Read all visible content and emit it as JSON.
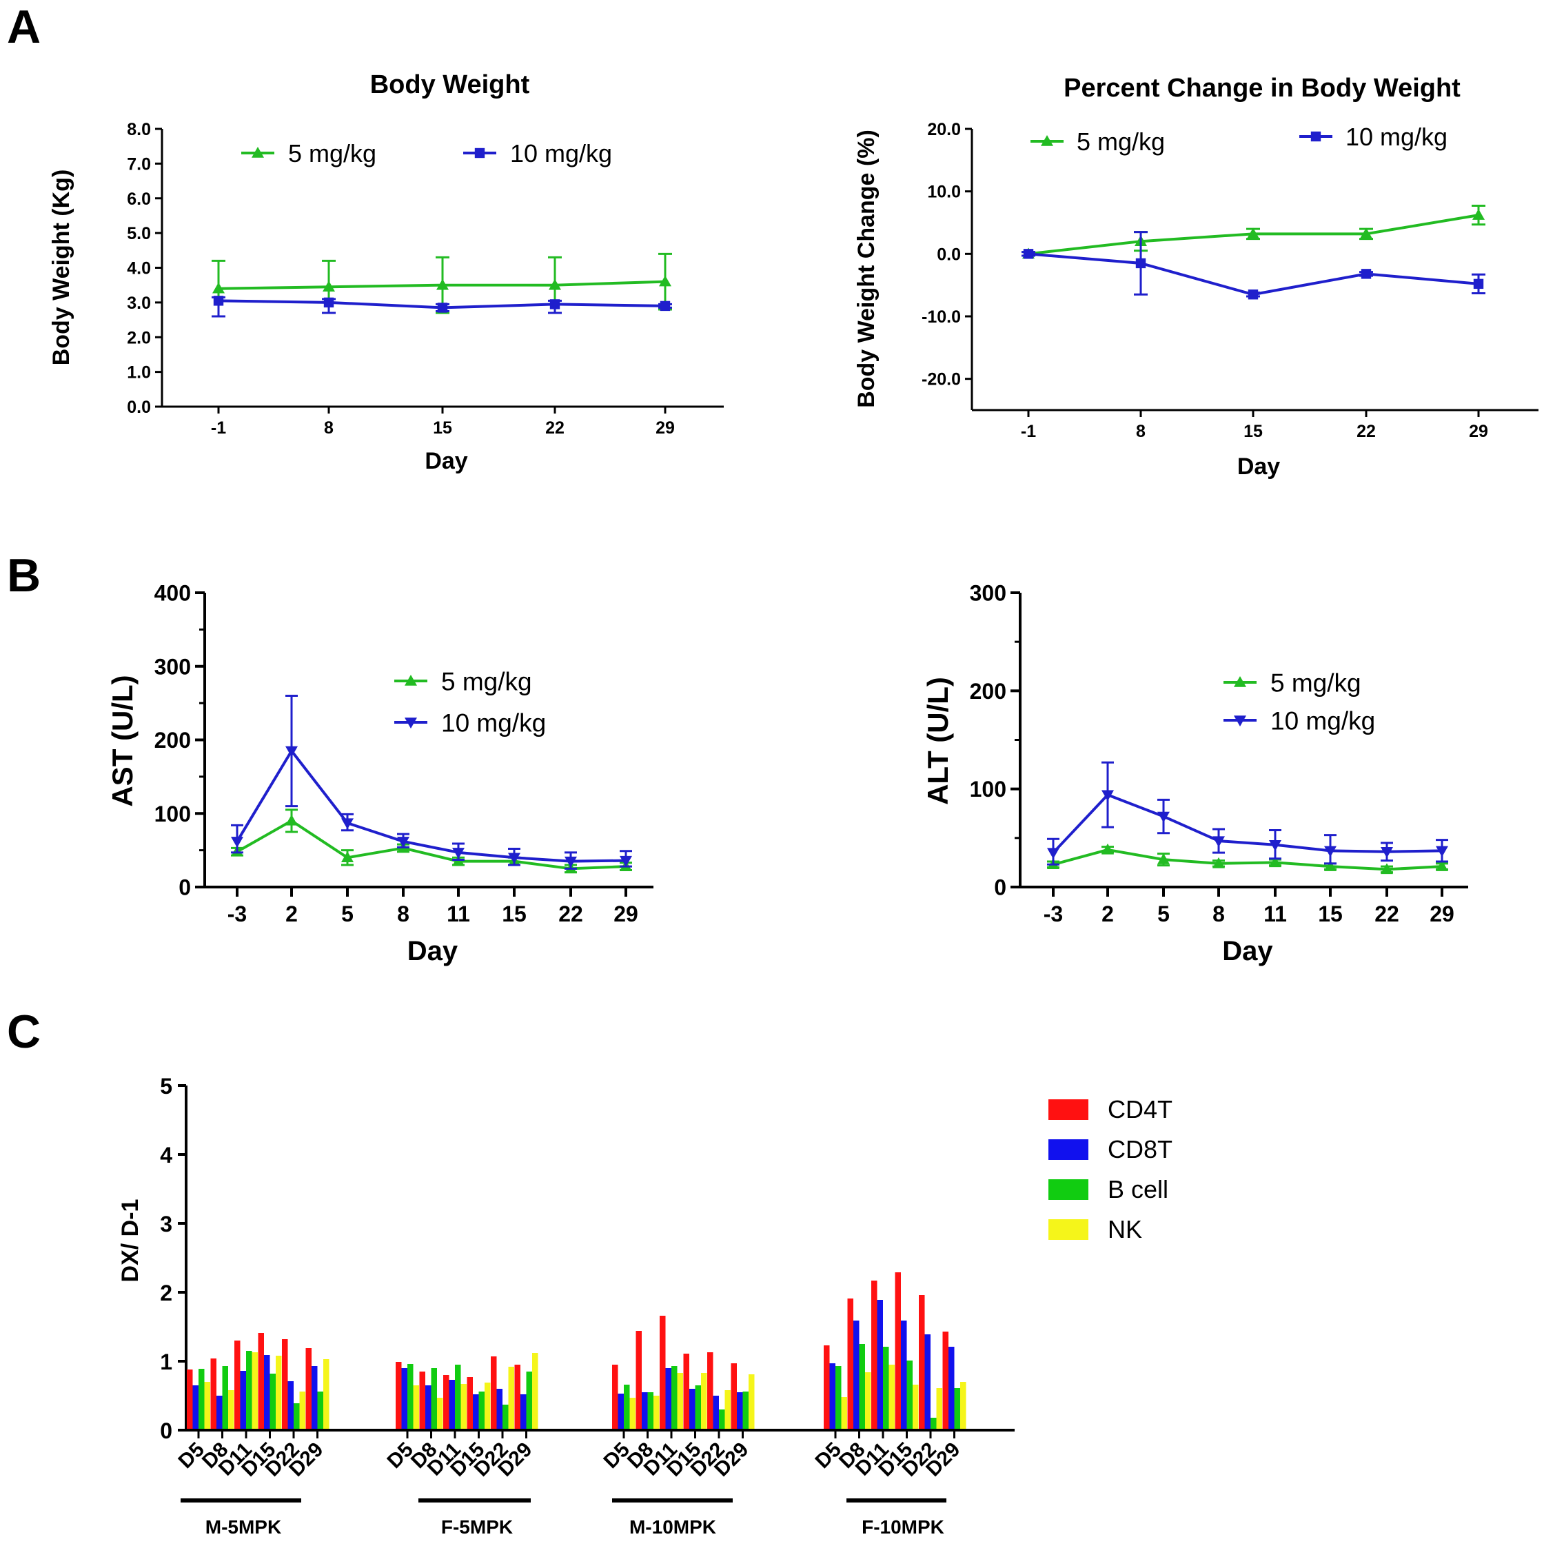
{
  "panels": {
    "a": "A",
    "b": "B",
    "c": "C"
  },
  "colors": {
    "green": "#22bb22",
    "blue": "#1f1fcc",
    "cd4t": "#ff1111",
    "cd8t": "#1111ee",
    "bcell": "#11cc11",
    "nk": "#f5f51a",
    "axis": "#000000"
  },
  "chart_data": [
    {
      "id": "body-weight",
      "type": "line",
      "title": "Body Weight",
      "xlabel": "Day",
      "ylabel": "Body Weight (Kg)",
      "x": [
        -1,
        8,
        15,
        22,
        29
      ],
      "x_tick_labels": [
        "-1",
        "8",
        "15",
        "22",
        "29"
      ],
      "y_ticks": [
        "0.0",
        "1.0",
        "2.0",
        "3.0",
        "4.0",
        "5.0",
        "6.0",
        "7.0",
        "8.0"
      ],
      "ylim": [
        0,
        8
      ],
      "legend": "top",
      "series": [
        {
          "name": "5 mg/kg",
          "color": "green",
          "marker": "triangle-up",
          "values": [
            3.4,
            3.45,
            3.5,
            3.5,
            3.6
          ],
          "err_up": [
            0.8,
            0.75,
            0.8,
            0.8,
            0.8
          ],
          "err_down": [
            0.8,
            0.75,
            0.8,
            0.8,
            0.8
          ]
        },
        {
          "name": "10 mg/kg",
          "color": "blue",
          "marker": "square",
          "values": [
            3.05,
            3.0,
            2.85,
            2.95,
            2.9
          ],
          "err_up": [
            0.1,
            0.1,
            0.1,
            0.1,
            0.05
          ],
          "err_down": [
            0.45,
            0.3,
            0.1,
            0.25,
            0.05
          ]
        }
      ]
    },
    {
      "id": "percent-change",
      "type": "line",
      "title": "Percent Change in Body Weight",
      "xlabel": "Day",
      "ylabel": "Body Weight Change  (%)",
      "x": [
        -1,
        8,
        15,
        22,
        29
      ],
      "x_tick_labels": [
        "-1",
        "8",
        "15",
        "22",
        "29"
      ],
      "y_ticks": [
        "-20.0",
        "-10.0",
        "0.0",
        "10.0",
        "20.0"
      ],
      "ylim": [
        -25,
        20
      ],
      "legend": "top",
      "series": [
        {
          "name": "5 mg/kg",
          "color": "green",
          "marker": "triangle-up",
          "values": [
            0,
            2.0,
            3.2,
            3.2,
            6.2
          ],
          "err_up": [
            0.3,
            1.5,
            0.8,
            0.8,
            1.5
          ],
          "err_down": [
            0.3,
            1.5,
            0.8,
            0.8,
            1.5
          ]
        },
        {
          "name": "10 mg/kg",
          "color": "blue",
          "marker": "square",
          "values": [
            0,
            -1.5,
            -6.5,
            -3.2,
            -4.8
          ],
          "err_up": [
            0.3,
            5.0,
            0.3,
            0.3,
            1.5
          ],
          "err_down": [
            0.3,
            5.0,
            0.3,
            0.3,
            1.5
          ]
        }
      ]
    },
    {
      "id": "ast",
      "type": "line",
      "title": "",
      "xlabel": "Day",
      "ylabel": "AST (U/L)",
      "x": [
        -3,
        2,
        5,
        8,
        11,
        15,
        22,
        29
      ],
      "x_tick_labels": [
        "-3",
        "2",
        "5",
        "8",
        "11",
        "15",
        "22",
        "29"
      ],
      "y_ticks": [
        "0",
        "100",
        "200",
        "300",
        "400"
      ],
      "ylim": [
        0,
        400
      ],
      "legend": "center",
      "series": [
        {
          "name": "5 mg/kg",
          "color": "green",
          "marker": "triangle-up",
          "values": [
            48,
            90,
            40,
            53,
            35,
            35,
            25,
            28
          ],
          "err_up": [
            5,
            15,
            10,
            5,
            5,
            5,
            5,
            5
          ],
          "err_down": [
            5,
            15,
            10,
            5,
            5,
            5,
            5,
            5
          ]
        },
        {
          "name": "10 mg/kg",
          "color": "blue",
          "marker": "triangle-down",
          "values": [
            62,
            185,
            87,
            62,
            47,
            40,
            35,
            36
          ],
          "err_up": [
            22,
            75,
            12,
            10,
            12,
            12,
            12,
            13
          ],
          "err_down": [
            15,
            75,
            10,
            8,
            10,
            10,
            10,
            8
          ]
        }
      ]
    },
    {
      "id": "alt",
      "type": "line",
      "title": "",
      "xlabel": "Day",
      "ylabel": "ALT (U/L)",
      "x": [
        -3,
        2,
        5,
        8,
        11,
        15,
        22,
        29
      ],
      "x_tick_labels": [
        "-3",
        "2",
        "5",
        "8",
        "11",
        "15",
        "22",
        "29"
      ],
      "y_ticks": [
        "0",
        "100",
        "200",
        "300"
      ],
      "ylim": [
        0,
        300
      ],
      "legend": "center",
      "series": [
        {
          "name": "5 mg/kg",
          "color": "green",
          "marker": "triangle-up",
          "values": [
            23,
            38,
            28,
            24,
            25,
            21,
            18,
            21
          ],
          "err_up": [
            3,
            3,
            6,
            3,
            3,
            3,
            3,
            3
          ],
          "err_down": [
            3,
            3,
            6,
            3,
            3,
            3,
            3,
            3
          ]
        },
        {
          "name": "10 mg/kg",
          "color": "blue",
          "marker": "triangle-down",
          "values": [
            35,
            94,
            72,
            47,
            43,
            37,
            36,
            37
          ],
          "err_up": [
            14,
            33,
            17,
            12,
            15,
            16,
            9,
            11
          ],
          "err_down": [
            12,
            33,
            17,
            12,
            14,
            13,
            9,
            11
          ]
        }
      ]
    },
    {
      "id": "lymphocytes",
      "type": "bar",
      "title": "",
      "xlabel": "",
      "ylabel": "DX/ D-1",
      "y_ticks": [
        "0",
        "1",
        "2",
        "3",
        "4",
        "5"
      ],
      "ylim": [
        0,
        5
      ],
      "legend": "top-right",
      "categories": [
        "D5",
        "D8",
        "D11",
        "D15",
        "D22",
        "D29"
      ],
      "groups": [
        "M-5MPK",
        "F-5MPK",
        "M-10MPK",
        "F-10MPK"
      ],
      "series": [
        {
          "name": "CD4T",
          "color": "cd4t",
          "values": [
            [
              0.88,
              1.04,
              1.3,
              1.41,
              1.32,
              1.19
            ],
            [
              0.99,
              0.85,
              0.8,
              0.77,
              1.07,
              0.95
            ],
            [
              0.95,
              1.44,
              1.66,
              1.11,
              1.13,
              0.97
            ],
            [
              1.23,
              1.91,
              2.17,
              2.29,
              1.96,
              1.43
            ]
          ]
        },
        {
          "name": "CD8T",
          "color": "cd8t",
          "values": [
            [
              0.65,
              0.5,
              0.86,
              1.09,
              0.71,
              0.93
            ],
            [
              0.9,
              0.65,
              0.73,
              0.52,
              0.6,
              0.52
            ],
            [
              0.53,
              0.55,
              0.9,
              0.6,
              0.5,
              0.55
            ],
            [
              0.97,
              1.59,
              1.89,
              1.59,
              1.39,
              1.21
            ]
          ]
        },
        {
          "name": "B cell",
          "color": "bcell",
          "values": [
            [
              0.89,
              0.93,
              1.15,
              0.82,
              0.39,
              0.56
            ],
            [
              0.96,
              0.9,
              0.95,
              0.56,
              0.37,
              0.85
            ],
            [
              0.66,
              0.55,
              0.93,
              0.65,
              0.3,
              0.56
            ],
            [
              0.93,
              1.25,
              1.21,
              1.01,
              0.18,
              0.61
            ]
          ]
        },
        {
          "name": "NK",
          "color": "nk",
          "values": [
            [
              0.7,
              0.58,
              1.13,
              1.08,
              0.56,
              1.03
            ],
            [
              0.65,
              0.47,
              0.67,
              0.69,
              0.92,
              1.12
            ],
            [
              0.47,
              0.5,
              0.83,
              0.83,
              0.58,
              0.81
            ],
            [
              0.48,
              0.84,
              0.95,
              0.66,
              0.61,
              0.7
            ]
          ]
        }
      ]
    }
  ]
}
